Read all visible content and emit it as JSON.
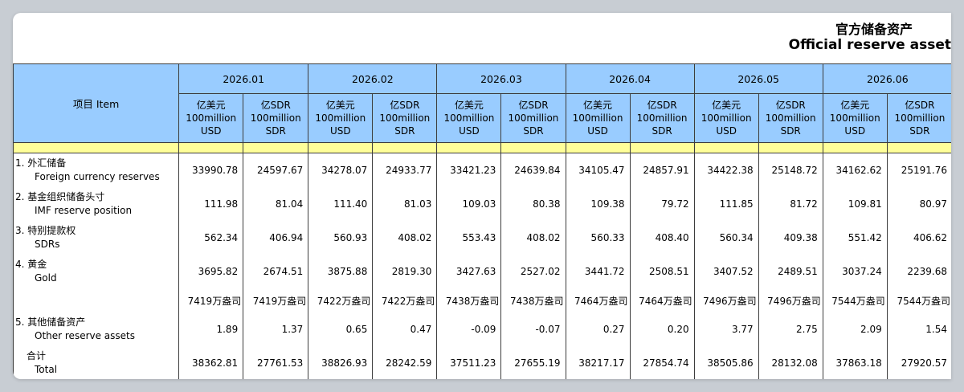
{
  "title_cn": "官方储备资产",
  "title_en": "Official reserve asset",
  "item_header": "项目 Item",
  "periods": [
    "2026.01",
    "2026.02",
    "2026.03",
    "2026.04",
    "2026.05",
    "2026.06"
  ],
  "unit_usd": [
    "亿美元",
    "100million",
    "USD"
  ],
  "unit_sdr": [
    "亿SDR",
    "100million",
    "SDR"
  ],
  "rows": [
    {
      "cn": "1.  外汇储备",
      "en": "Foreign currency reserves",
      "values": [
        "33990.78",
        "24597.67",
        "34278.07",
        "24933.77",
        "33421.23",
        "24639.84",
        "34105.47",
        "24857.91",
        "34422.38",
        "25148.72",
        "34162.62",
        "25191.76"
      ]
    },
    {
      "cn": "2.  基金组织储备头寸",
      "en": "IMF reserve position",
      "values": [
        "111.98",
        "81.04",
        "111.40",
        "81.03",
        "109.03",
        "80.38",
        "109.38",
        "79.72",
        "111.85",
        "81.72",
        "109.81",
        "80.97"
      ]
    },
    {
      "cn": "3.  特别提款权",
      "en": "SDRs",
      "values": [
        "562.34",
        "406.94",
        "560.93",
        "408.02",
        "553.43",
        "408.02",
        "560.33",
        "408.40",
        "560.34",
        "409.38",
        "551.42",
        "406.62"
      ]
    },
    {
      "cn": "4.  黄金",
      "en": "Gold",
      "values": [
        "3695.82",
        "2674.51",
        "3875.88",
        "2819.30",
        "3427.63",
        "2527.02",
        "3441.72",
        "2508.51",
        "3407.52",
        "2489.51",
        "3037.24",
        "2239.68"
      ]
    }
  ],
  "gold_volume": [
    "7419万盎司",
    "7419万盎司",
    "7422万盎司",
    "7422万盎司",
    "7438万盎司",
    "7438万盎司",
    "7464万盎司",
    "7464万盎司",
    "7496万盎司",
    "7496万盎司",
    "7544万盎司",
    "7544万盎司"
  ],
  "other": {
    "cn": "5.  其他储备资产",
    "en": "Other reserve assets",
    "values": [
      "1.89",
      "1.37",
      "0.65",
      "0.47",
      "-0.09",
      "-0.07",
      "0.27",
      "0.20",
      "3.77",
      "2.75",
      "2.09",
      "1.54"
    ]
  },
  "total": {
    "cn": "合计",
    "en": "Total",
    "values": [
      "38362.81",
      "27761.53",
      "38826.93",
      "28242.59",
      "37511.23",
      "27655.19",
      "38217.17",
      "27854.74",
      "38505.86",
      "28132.08",
      "37863.18",
      "27920.57"
    ]
  }
}
